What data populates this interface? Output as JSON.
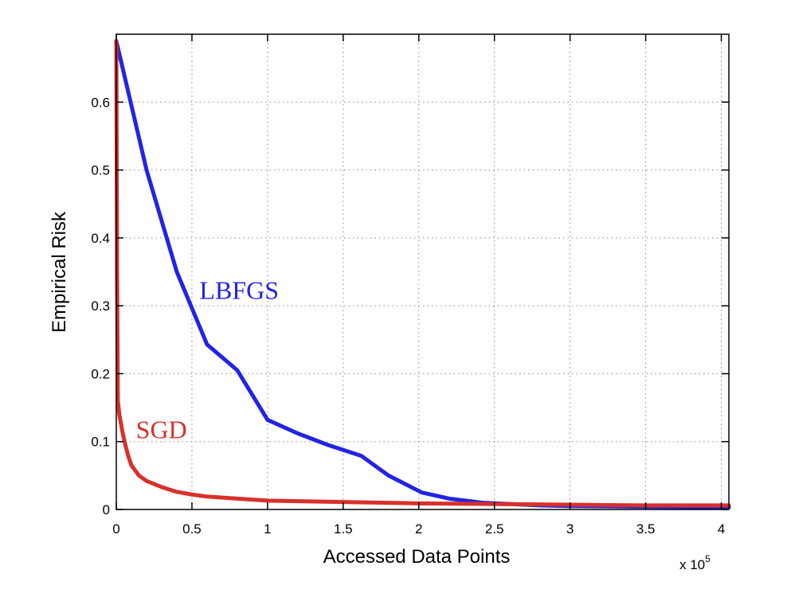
{
  "chart_data": {
    "type": "line",
    "xlabel": "Accessed Data Points",
    "ylabel": "Empirical Risk",
    "x_multiplier_label": "x 10",
    "x_multiplier_exponent": "5",
    "xlim": [
      0,
      4.05
    ],
    "ylim": [
      0,
      0.7
    ],
    "xticks": [
      0,
      0.5,
      1,
      1.5,
      2,
      2.5,
      3,
      3.5,
      4
    ],
    "xtick_labels": [
      "0",
      "0.5",
      "1",
      "1.5",
      "2",
      "2.5",
      "3",
      "3.5",
      "4"
    ],
    "yticks": [
      0,
      0.1,
      0.2,
      0.3,
      0.4,
      0.5,
      0.6
    ],
    "ytick_labels": [
      "0",
      "0.1",
      "0.2",
      "0.3",
      "0.4",
      "0.5",
      "0.6"
    ],
    "grid": true,
    "series": [
      {
        "name": "LBFGS",
        "color": "#2323e6",
        "x": [
          0,
          0.2,
          0.4,
          0.6,
          0.8,
          1.0,
          1.2,
          1.4,
          1.62,
          1.8,
          2.02,
          2.2,
          2.42,
          2.6,
          2.8,
          3.0,
          3.5,
          4.05
        ],
        "y": [
          0.69,
          0.5,
          0.35,
          0.243,
          0.205,
          0.132,
          0.112,
          0.095,
          0.079,
          0.05,
          0.025,
          0.016,
          0.01,
          0.008,
          0.006,
          0.005,
          0.004,
          0.003
        ]
      },
      {
        "name": "SGD",
        "color": "#d9302a",
        "x": [
          0,
          0.005,
          0.01,
          0.02,
          0.04,
          0.06,
          0.08,
          0.1,
          0.15,
          0.2,
          0.3,
          0.4,
          0.5,
          0.6,
          0.8,
          1.0,
          1.5,
          2.0,
          2.5,
          3.0,
          3.5,
          4.05
        ],
        "y": [
          0.69,
          0.35,
          0.16,
          0.14,
          0.115,
          0.095,
          0.078,
          0.065,
          0.05,
          0.042,
          0.033,
          0.026,
          0.022,
          0.019,
          0.016,
          0.013,
          0.011,
          0.009,
          0.008,
          0.007,
          0.006,
          0.006
        ]
      }
    ],
    "annotations": [
      {
        "text": "LBFGS",
        "x": 0.55,
        "y": 0.31,
        "color": "#2323e6"
      },
      {
        "text": "SGD",
        "x": 0.13,
        "y": 0.105,
        "color": "#d9302a"
      }
    ]
  }
}
